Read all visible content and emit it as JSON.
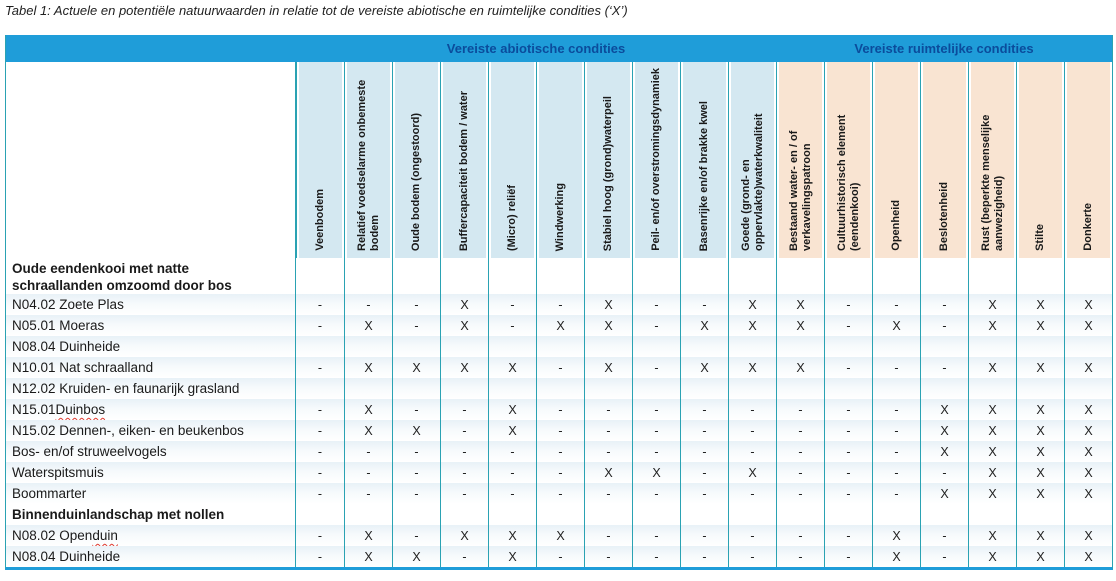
{
  "title": "Tabel 1: Actuele en potentiële natuurwaarden in relatie tot de vereiste abiotische en ruimtelijke condities (‘X’)",
  "colors": {
    "band_blue": "#1f9dd9",
    "band_text_blue": "#0b4c9c",
    "header_abiotic_bg": "#d4e8f1",
    "header_spatial_bg": "#f9e4d2",
    "grid_teal": "#2aa2b3",
    "bottom_border_blue": "#1f9dd9",
    "spellcheck_red": "#e03c31"
  },
  "table": {
    "band": [
      {
        "label": "Vereiste abiotische condities",
        "span": 10
      },
      {
        "label": "Vereiste ruimtelijke condities",
        "span": 7
      }
    ],
    "columns": [
      {
        "label": "Veenbodem",
        "group": "abiotic"
      },
      {
        "label": "Relatief voedselarme onbemeste bodem",
        "group": "abiotic"
      },
      {
        "label": "Oude bodem (ongestoord)",
        "group": "abiotic"
      },
      {
        "label": "Buffercapaciteit bodem / water",
        "group": "abiotic"
      },
      {
        "label": "(Micro) reliëf",
        "group": "abiotic"
      },
      {
        "label": "Windwerking",
        "group": "abiotic"
      },
      {
        "label": "Stabiel hoog (grond)waterpeil",
        "group": "abiotic"
      },
      {
        "label": "Peil- en/of overstromingsdynamiek",
        "group": "abiotic"
      },
      {
        "label": "Basenrijke en/of brakke kwel",
        "group": "abiotic"
      },
      {
        "label": "Goede (grond- en oppervlakte)waterkwaliteit",
        "group": "abiotic"
      },
      {
        "label": "Bestaand water- en / of verkavelingspatroon",
        "group": "spatial"
      },
      {
        "label": "Cultuurhistorisch element (eendenkooi)",
        "group": "spatial"
      },
      {
        "label": "Openheid",
        "group": "spatial"
      },
      {
        "label": "Beslotenheid",
        "group": "spatial"
      },
      {
        "label": "Rust (beperkte menselijke aanwezigheid)",
        "group": "spatial"
      },
      {
        "label": "Stilte",
        "group": "spatial"
      },
      {
        "label": "Donkerte",
        "group": "spatial"
      }
    ],
    "rows": [
      {
        "type": "group",
        "label": "Oude eendenkooi met natte schraallanden omzoomd door bos"
      },
      {
        "type": "data",
        "label": "N04.02 Zoete Plas",
        "values": [
          "-",
          "-",
          "-",
          "X",
          "-",
          "-",
          "X",
          "-",
          "-",
          "X",
          "X",
          "-",
          "-",
          "-",
          "X",
          "X",
          "X"
        ]
      },
      {
        "type": "data",
        "label": "N05.01 Moeras",
        "values": [
          "-",
          "X",
          "-",
          "X",
          "-",
          "X",
          "X",
          "-",
          "X",
          "X",
          "X",
          "-",
          "X",
          "-",
          "X",
          "X",
          "X"
        ]
      },
      {
        "type": "data",
        "label": "N08.04 Duinheide",
        "values": [
          "",
          "",
          "",
          "",
          "",
          "",
          "",
          "",
          "",
          "",
          "",
          "",
          "",
          "",
          "",
          "",
          ""
        ]
      },
      {
        "type": "data",
        "label": "N10.01 Nat schraalland",
        "values": [
          "-",
          "X",
          "X",
          "X",
          "X",
          "-",
          "X",
          "-",
          "X",
          "X",
          "X",
          "-",
          "-",
          "-",
          "X",
          "X",
          "X"
        ]
      },
      {
        "type": "data",
        "label": "N12.02 Kruiden- en faunarijk grasland",
        "values": [
          "",
          "",
          "",
          "",
          "",
          "",
          "",
          "",
          "",
          "",
          "",
          "",
          "",
          "",
          "",
          "",
          ""
        ]
      },
      {
        "type": "data",
        "label": "N15.01 Duinbos",
        "label_parts": {
          "prefix": "N15.01 ",
          "misspelled": "Duinbos"
        },
        "values": [
          "-",
          "X",
          "-",
          "-",
          "X",
          "-",
          "-",
          "-",
          "-",
          "-",
          "-",
          "-",
          "-",
          "X",
          "X",
          "X",
          "X"
        ]
      },
      {
        "type": "data",
        "label": "N15.02 Dennen-, eiken- en beukenbos",
        "values": [
          "-",
          "X",
          "X",
          "-",
          "X",
          "-",
          "-",
          "-",
          "-",
          "-",
          "-",
          "-",
          "-",
          "X",
          "X",
          "X",
          "X"
        ]
      },
      {
        "type": "data",
        "label": "Bos- en/of struweelvogels",
        "values": [
          "-",
          "-",
          "-",
          "-",
          "-",
          "-",
          "-",
          "-",
          "-",
          "-",
          "-",
          "-",
          "-",
          "X",
          "X",
          "X",
          "X"
        ]
      },
      {
        "type": "data",
        "label": "Waterspitsmuis",
        "values": [
          "-",
          "-",
          "-",
          "-",
          "-",
          "-",
          "X",
          "X",
          "-",
          "X",
          "-",
          "-",
          "-",
          "-",
          "X",
          "X",
          "X"
        ]
      },
      {
        "type": "data",
        "label": "Boommarter",
        "values": [
          "-",
          "-",
          "-",
          "-",
          "-",
          "-",
          "-",
          "-",
          "-",
          "-",
          "-",
          "-",
          "-",
          "X",
          "X",
          "X",
          "X"
        ]
      },
      {
        "type": "group",
        "label": "Binnenduinlandschap met nollen"
      },
      {
        "type": "data",
        "label": "N08.02 Open duin",
        "label_parts": {
          "prefix": "N08.02 Open ",
          "misspelled": "duin"
        },
        "values": [
          "-",
          "X",
          "-",
          "X",
          "X",
          "X",
          "-",
          "-",
          "-",
          "-",
          "-",
          "-",
          "X",
          "-",
          "X",
          "X",
          "X"
        ]
      },
      {
        "type": "data",
        "label": "N08.04 Duinheide",
        "values": [
          "-",
          "X",
          "X",
          "-",
          "X",
          "-",
          "-",
          "-",
          "-",
          "-",
          "-",
          "-",
          "X",
          "-",
          "X",
          "X",
          "X"
        ]
      }
    ]
  }
}
